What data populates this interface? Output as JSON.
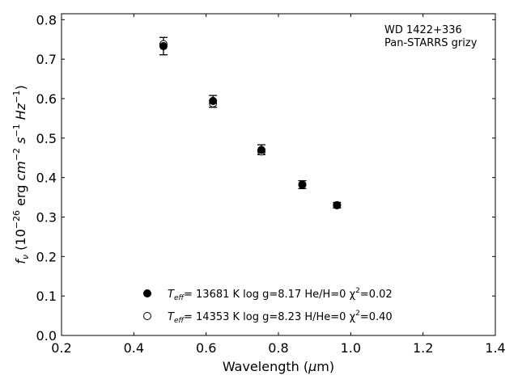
{
  "chart_data": {
    "type": "scatter",
    "annotation_lines": [
      "WD 1422+336",
      "Pan-STARRS grizy"
    ],
    "xlabel": "Wavelength (μm)",
    "ylabel": "f_ν (10^-26 erg cm^-2 s^-1 Hz^-1)",
    "xlim": [
      0.2,
      1.4
    ],
    "ylim": [
      0.0,
      0.815
    ],
    "xticks": [
      "0.2",
      "0.4",
      "0.6",
      "0.8",
      "1.0",
      "1.2",
      "1.4"
    ],
    "yticks": [
      "0.0",
      "0.1",
      "0.2",
      "0.3",
      "0.4",
      "0.5",
      "0.6",
      "0.7",
      "0.8"
    ],
    "grid": false,
    "legend_position": "bottom-center",
    "observed": {
      "x": [
        0.482,
        0.619,
        0.753,
        0.866,
        0.962
      ],
      "y": [
        0.733,
        0.592,
        0.47,
        0.382,
        0.33
      ],
      "err_low": [
        0.022,
        0.014,
        0.012,
        0.01,
        0.007
      ],
      "err_high": [
        0.022,
        0.016,
        0.013,
        0.01,
        0.007
      ]
    },
    "series": [
      {
        "marker": "filled",
        "legend_parts": [
          "T",
          "eff",
          "= 13681 K  log g=8.17  He/H=0  χ",
          "2",
          "=0.02"
        ],
        "x": [
          0.482,
          0.619,
          0.753,
          0.866,
          0.962
        ],
        "y": [
          0.733,
          0.594,
          0.47,
          0.382,
          0.33
        ]
      },
      {
        "marker": "open",
        "legend_parts": [
          "T",
          "eff",
          "= 14353 K  log g=8.23  H/He=0  χ",
          "2",
          "=0.40"
        ],
        "x": [
          0.482,
          0.619,
          0.753,
          0.866,
          0.962
        ],
        "y": [
          0.738,
          0.588,
          0.466,
          0.382,
          0.33
        ]
      }
    ]
  }
}
